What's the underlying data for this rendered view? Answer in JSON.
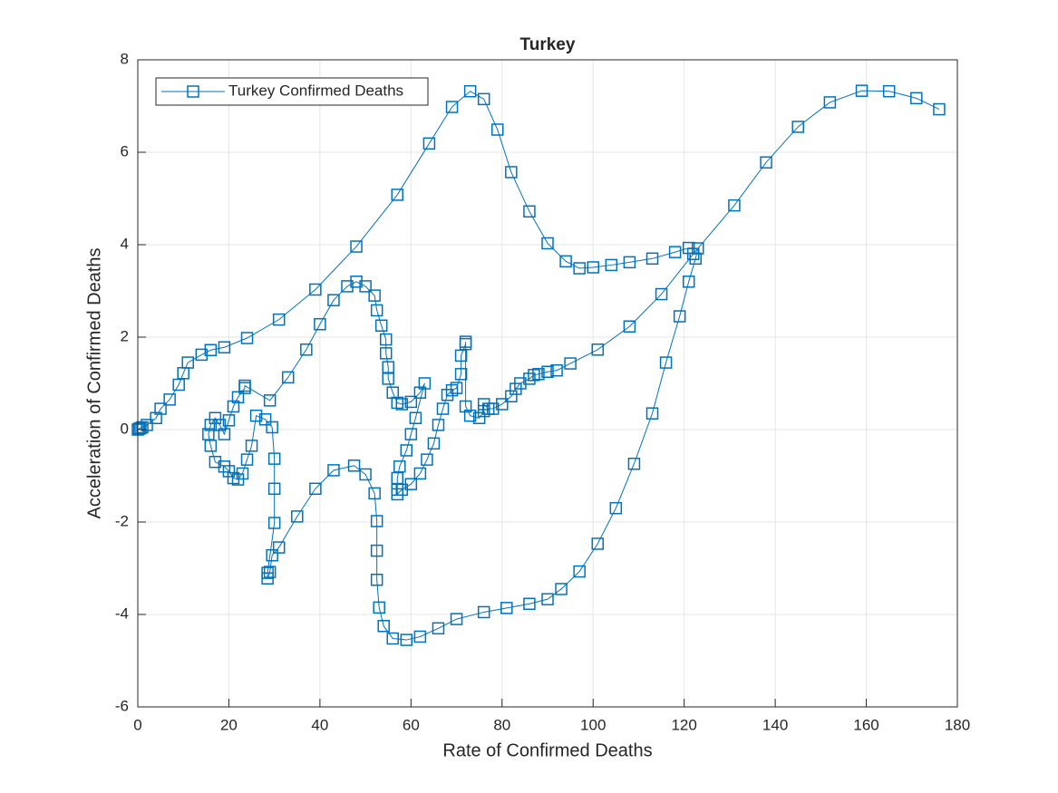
{
  "chart_data": {
    "type": "line",
    "title": "Turkey",
    "x_label": "Rate of Confirmed Deaths",
    "y_label": "Acceleration of Confirmed Deaths",
    "xlim": [
      0,
      180
    ],
    "ylim": [
      -6,
      8
    ],
    "xticks": [
      0,
      20,
      40,
      60,
      80,
      100,
      120,
      140,
      160,
      180
    ],
    "yticks": [
      -6,
      -4,
      -2,
      0,
      2,
      4,
      6,
      8
    ],
    "grid": true,
    "legend": "upper-left",
    "x": [
      0,
      0.3,
      0.6,
      1,
      2,
      4,
      5,
      7,
      9,
      10,
      11,
      14,
      16,
      19,
      24,
      31,
      39,
      48,
      57,
      64,
      69,
      73,
      76,
      79,
      82,
      86,
      90,
      94,
      97,
      100,
      104,
      108,
      113,
      118,
      121,
      123,
      122.5,
      121,
      119,
      116,
      113,
      109,
      105,
      101,
      97,
      93,
      90,
      86,
      81,
      76,
      70,
      66,
      62,
      59,
      56,
      54,
      53,
      52.5,
      52.5,
      52.5,
      52,
      50,
      47.5,
      43,
      39,
      35,
      31,
      29.5,
      29,
      28.5,
      28.5,
      30,
      30,
      30,
      29.5,
      28,
      26,
      25,
      24,
      23,
      22,
      21,
      20,
      19,
      17,
      16,
      15.5,
      16,
      17,
      18,
      19,
      20,
      21,
      22,
      23.5,
      23.5,
      29,
      33,
      37,
      40,
      43,
      46,
      48,
      50,
      52,
      52.5,
      53.5,
      54.5,
      54.5,
      55,
      55,
      56,
      57,
      58,
      60,
      62,
      63,
      61,
      60,
      59,
      57.5,
      57,
      57,
      57,
      58,
      60,
      62,
      63.5,
      65,
      66,
      67,
      68,
      69,
      70,
      71,
      71,
      72,
      72,
      72,
      73,
      75,
      76,
      76,
      77,
      78,
      80,
      82,
      83,
      84,
      86,
      87,
      88,
      90,
      92,
      95,
      101,
      108,
      115,
      122,
      131,
      138,
      145,
      152,
      159,
      165,
      171,
      176
    ],
    "series": [
      {
        "name": "Turkey Confirmed Deaths",
        "color": "#0072bd",
        "values": [
          0,
          0.02,
          0.03,
          0.05,
          0.1,
          0.25,
          0.45,
          0.65,
          0.97,
          1.22,
          1.45,
          1.62,
          1.72,
          1.78,
          1.98,
          2.38,
          3.03,
          3.96,
          5.08,
          6.19,
          6.98,
          7.32,
          7.15,
          6.49,
          5.57,
          4.72,
          4.03,
          3.64,
          3.49,
          3.51,
          3.56,
          3.62,
          3.7,
          3.84,
          3.93,
          3.92,
          3.7,
          3.2,
          2.45,
          1.45,
          0.35,
          -0.74,
          -1.7,
          -2.47,
          -3.07,
          -3.45,
          -3.67,
          -3.77,
          -3.86,
          -3.95,
          -4.1,
          -4.3,
          -4.48,
          -4.55,
          -4.52,
          -4.25,
          -3.85,
          -3.25,
          -2.62,
          -1.98,
          -1.38,
          -0.97,
          -0.78,
          -0.88,
          -1.28,
          -1.88,
          -2.55,
          -2.72,
          -3.08,
          -3.22,
          -3.1,
          -2.02,
          -1.28,
          -0.63,
          0.05,
          0.22,
          0.3,
          -0.35,
          -0.65,
          -0.95,
          -1.08,
          -1.05,
          -0.9,
          -0.8,
          -0.7,
          -0.35,
          -0.1,
          0.1,
          0.25,
          0.1,
          -0.1,
          0.2,
          0.5,
          0.7,
          0.9,
          0.95,
          0.63,
          1.13,
          1.73,
          2.28,
          2.8,
          3.1,
          3.2,
          3.1,
          2.9,
          2.58,
          2.25,
          1.95,
          1.65,
          1.35,
          1.1,
          0.8,
          0.58,
          0.55,
          0.6,
          0.8,
          1.0,
          0.25,
          -0.1,
          -0.45,
          -0.8,
          -1.05,
          -1.3,
          -1.4,
          -1.3,
          -1.18,
          -0.95,
          -0.65,
          -0.3,
          0.1,
          0.45,
          0.75,
          0.85,
          0.9,
          1.2,
          1.6,
          1.85,
          1.9,
          0.5,
          0.3,
          0.25,
          0.4,
          0.55,
          0.45,
          0.45,
          0.55,
          0.72,
          0.88,
          1.0,
          1.1,
          1.18,
          1.2,
          1.25,
          1.28,
          1.43,
          1.73,
          2.23,
          2.93,
          3.8,
          4.85,
          5.78,
          6.55,
          7.08,
          7.33,
          7.32,
          7.17,
          6.93
        ]
      }
    ]
  }
}
